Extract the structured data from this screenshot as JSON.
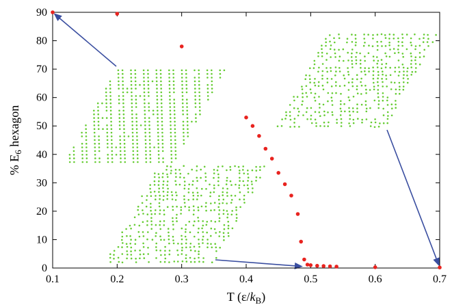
{
  "chart_data": {
    "type": "scatter",
    "title": "",
    "xlabel": "T (ε/k_B)",
    "ylabel": "% E_6 hexagon",
    "xlim": [
      0.1,
      0.7
    ],
    "ylim": [
      0,
      90
    ],
    "xticks": [
      "0.1",
      "0.2",
      "0.3",
      "0.4",
      "0.5",
      "0.6",
      "0.7"
    ],
    "yticks": [
      "0",
      "10",
      "20",
      "30",
      "40",
      "50",
      "60",
      "70",
      "80",
      "90"
    ],
    "grid": false,
    "legend": "none",
    "series": [
      {
        "color": "#e8231f",
        "points": [
          [
            0.1,
            90
          ],
          [
            0.2,
            89.5
          ],
          [
            0.3,
            78
          ],
          [
            0.4,
            53
          ],
          [
            0.41,
            50
          ],
          [
            0.42,
            46.5
          ],
          [
            0.43,
            42
          ],
          [
            0.44,
            38.5
          ],
          [
            0.45,
            33.5
          ],
          [
            0.46,
            29.5
          ],
          [
            0.47,
            25.5
          ],
          [
            0.48,
            19
          ],
          [
            0.485,
            9.3
          ],
          [
            0.49,
            3
          ],
          [
            0.495,
            1.2
          ],
          [
            0.5,
            1
          ],
          [
            0.51,
            0.8
          ],
          [
            0.52,
            0.7
          ],
          [
            0.53,
            0.6
          ],
          [
            0.54,
            0.5
          ],
          [
            0.6,
            0.3
          ],
          [
            0.7,
            0.2
          ]
        ]
      }
    ],
    "insets": [
      {
        "name": "low-temperature-snapshot",
        "pattern": "honeycomb",
        "arrow_to": [
          0.1,
          90
        ],
        "dot_color": "#66cc33"
      },
      {
        "name": "mid-temperature-snapshot",
        "pattern": "disordered",
        "arrow_to": [
          0.49,
          0.5
        ],
        "dot_color": "#66cc33"
      },
      {
        "name": "high-temperature-snapshot",
        "pattern": "disordered",
        "arrow_to": [
          0.7,
          0.2
        ],
        "dot_color": "#66cc33"
      }
    ],
    "arrow_color": "#3a4ea0"
  }
}
